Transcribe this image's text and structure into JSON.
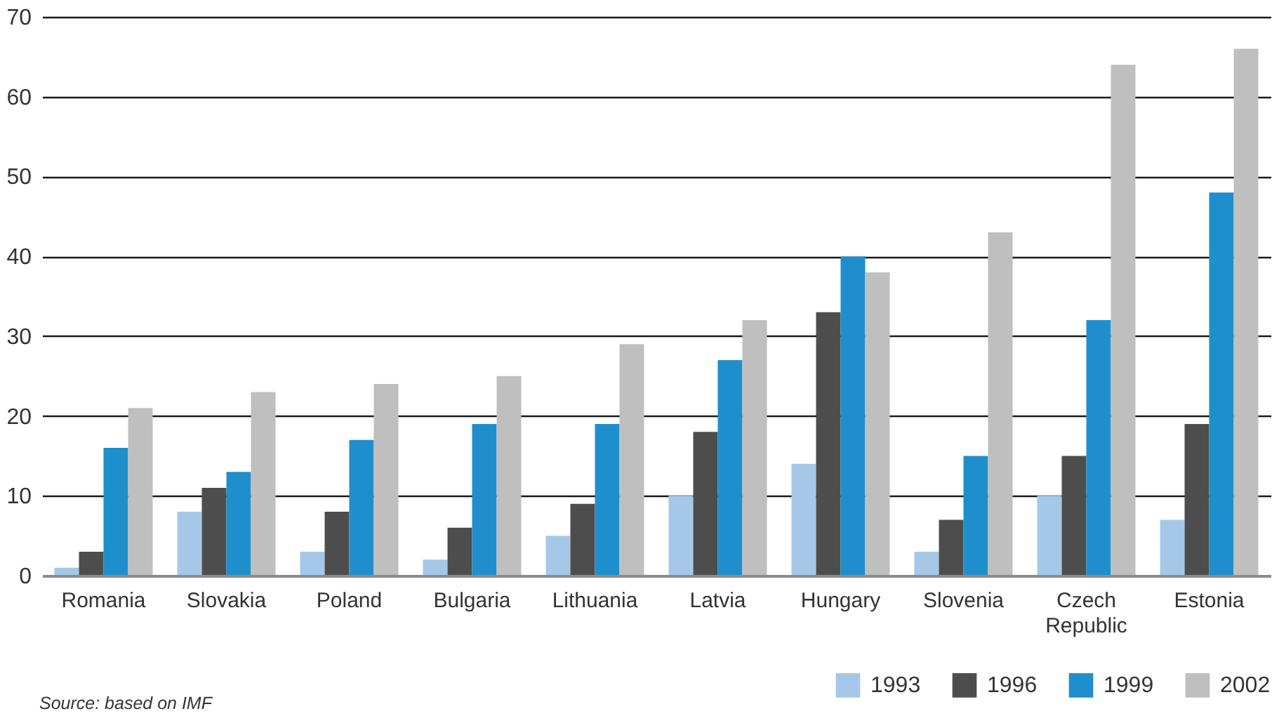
{
  "chart_data": {
    "type": "bar",
    "categories": [
      "Romania",
      "Slovakia",
      "Poland",
      "Bulgaria",
      "Lithuania",
      "Latvia",
      "Hungary",
      "Slovenia",
      "Czech Republic",
      "Estonia"
    ],
    "series": [
      {
        "name": "1993",
        "color": "#a6c8e8",
        "values": [
          1,
          8,
          3,
          2,
          5,
          10,
          14,
          3,
          10,
          7
        ]
      },
      {
        "name": "1996",
        "color": "#4d4d4d",
        "values": [
          3,
          11,
          8,
          6,
          9,
          18,
          33,
          7,
          15,
          19
        ]
      },
      {
        "name": "1999",
        "color": "#1e8fcc",
        "values": [
          16,
          13,
          17,
          19,
          19,
          27,
          40,
          15,
          32,
          48
        ]
      },
      {
        "name": "2002",
        "color": "#bfbfbf",
        "values": [
          21,
          23,
          24,
          25,
          29,
          32,
          38,
          43,
          64,
          66
        ]
      }
    ],
    "ylim": [
      0,
      70
    ],
    "yticks": [
      0,
      10,
      20,
      30,
      40,
      50,
      60,
      70
    ],
    "grid": "y",
    "legend": "bottom right",
    "annotations": [
      "Source: based on IMF"
    ]
  }
}
